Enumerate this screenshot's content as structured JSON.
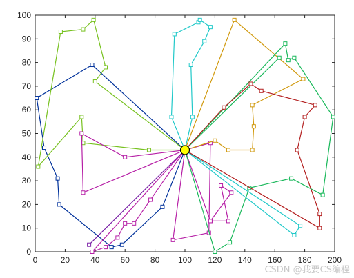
{
  "chart_data": {
    "type": "line",
    "title": "",
    "xlabel": "",
    "ylabel": "",
    "xlim": [
      0,
      200
    ],
    "ylim": [
      0,
      100
    ],
    "xticks": [
      0,
      20,
      40,
      60,
      80,
      100,
      120,
      140,
      160,
      180,
      200
    ],
    "yticks": [
      0,
      10,
      20,
      30,
      40,
      50,
      60,
      70,
      80,
      90,
      100
    ],
    "grid": false,
    "marker": "square",
    "depot": {
      "x": 100,
      "y": 43,
      "color": "#ffff00"
    },
    "series": [
      {
        "color": "#00319b",
        "points": [
          [
            100,
            43
          ],
          [
            38,
            79
          ],
          [
            1,
            65
          ],
          [
            6,
            44
          ],
          [
            15,
            31
          ],
          [
            16,
            20
          ],
          [
            51,
            2
          ],
          [
            58,
            3
          ],
          [
            85,
            19
          ],
          [
            100,
            43
          ]
        ]
      },
      {
        "color": "#77c11f",
        "points": [
          [
            100,
            43
          ],
          [
            76,
            43
          ],
          [
            32,
            46
          ],
          [
            31,
            57
          ],
          [
            2,
            36
          ],
          [
            17,
            93
          ],
          [
            32,
            94
          ],
          [
            39,
            98
          ],
          [
            47,
            78
          ],
          [
            40,
            72
          ],
          [
            100,
            43
          ]
        ]
      },
      {
        "color": "#b61fa6",
        "points": [
          [
            100,
            43
          ],
          [
            60,
            40
          ],
          [
            31,
            50
          ],
          [
            32,
            25
          ],
          [
            100,
            43
          ]
        ]
      },
      {
        "color": "#b61fa6",
        "points": [
          [
            100,
            43
          ],
          [
            77,
            22
          ],
          [
            66,
            12
          ],
          [
            60,
            12
          ],
          [
            55,
            6
          ],
          [
            47,
            2
          ],
          [
            38,
            0
          ],
          [
            100,
            43
          ]
        ]
      },
      {
        "color": "#b61fa6",
        "points": [
          [
            100,
            43
          ],
          [
            92,
            5
          ],
          [
            116,
            8
          ],
          [
            117,
            46
          ],
          [
            100,
            43
          ]
        ]
      },
      {
        "color": "#b61fa6",
        "points": [
          [
            100,
            43
          ],
          [
            117,
            13
          ],
          [
            129,
            13
          ],
          [
            124,
            28
          ],
          [
            131,
            25
          ],
          [
            117,
            13
          ],
          [
            100,
            43
          ]
        ]
      },
      {
        "color": "#7a1fa6",
        "points": [
          [
            100,
            43
          ],
          [
            36,
            3
          ],
          [
            100,
            43
          ]
        ]
      },
      {
        "color": "#21c9c9",
        "points": [
          [
            100,
            43
          ],
          [
            91,
            57
          ],
          [
            93,
            92
          ],
          [
            109,
            97
          ],
          [
            110,
            98
          ],
          [
            117,
            95
          ],
          [
            113,
            89
          ],
          [
            104,
            79
          ],
          [
            105,
            57
          ],
          [
            100,
            43
          ]
        ]
      },
      {
        "color": "#21c9c9",
        "points": [
          [
            100,
            43
          ],
          [
            173,
            7
          ],
          [
            177,
            11
          ],
          [
            100,
            43
          ]
        ]
      },
      {
        "color": "#d19a0f",
        "points": [
          [
            100,
            43
          ],
          [
            133,
            98
          ],
          [
            179,
            73
          ],
          [
            145,
            62
          ],
          [
            146,
            53
          ],
          [
            145,
            43
          ],
          [
            129,
            43
          ],
          [
            120,
            47
          ],
          [
            100,
            43
          ]
        ]
      },
      {
        "color": "#19b85a",
        "points": [
          [
            100,
            43
          ],
          [
            167,
            88
          ],
          [
            169,
            81
          ],
          [
            173,
            82
          ],
          [
            199,
            57
          ],
          [
            192,
            24
          ],
          [
            171,
            31
          ],
          [
            143,
            27
          ],
          [
            130,
            4
          ],
          [
            120,
            0
          ],
          [
            100,
            43
          ]
        ]
      },
      {
        "color": "#19b85a",
        "points": [
          [
            100,
            43
          ],
          [
            163,
            82
          ],
          [
            100,
            43
          ]
        ]
      },
      {
        "color": "#b31e1e",
        "points": [
          [
            100,
            43
          ],
          [
            190,
            10
          ],
          [
            190,
            16
          ],
          [
            175,
            43
          ],
          [
            180,
            57
          ],
          [
            187,
            62
          ],
          [
            151,
            68
          ],
          [
            144,
            71
          ],
          [
            126,
            61
          ],
          [
            100,
            43
          ]
        ]
      }
    ]
  },
  "watermark": "CSDN @我要CS编程"
}
